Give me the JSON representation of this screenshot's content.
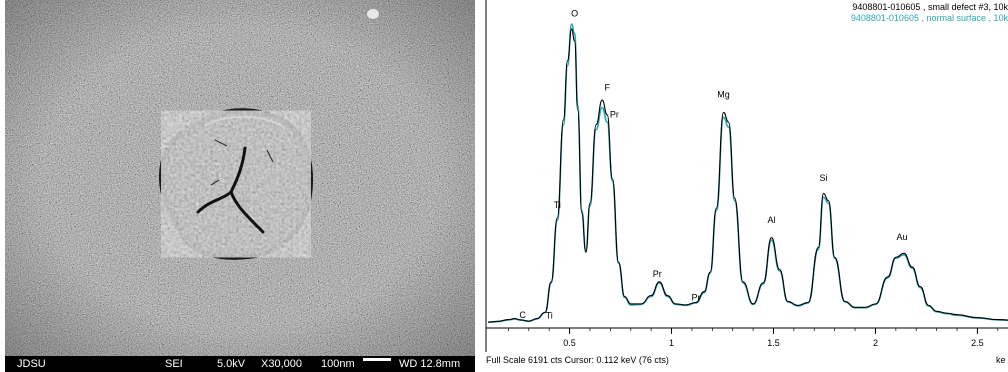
{
  "sem_image": {
    "footer": {
      "left": "JDSU",
      "mode": "SEI",
      "voltage": "5.0kV",
      "magnification": "X30,000",
      "scale": "100nm",
      "working_distance": "WD 12.8mm"
    },
    "colors": {
      "background": "#7a7a7a",
      "footer_bg": "#000000",
      "footer_text": "#ffffff"
    }
  },
  "chart_data": {
    "type": "line",
    "series": [
      {
        "name": "9408801-010605 , small defect #3, 10k",
        "color": "#000000",
        "x": [
          0.1,
          0.15,
          0.2,
          0.23,
          0.26,
          0.3,
          0.34,
          0.38,
          0.41,
          0.44,
          0.47,
          0.49,
          0.51,
          0.525,
          0.54,
          0.56,
          0.58,
          0.6,
          0.63,
          0.66,
          0.685,
          0.71,
          0.74,
          0.77,
          0.8,
          0.85,
          0.9,
          0.94,
          0.98,
          1.02,
          1.07,
          1.12,
          1.16,
          1.19,
          1.22,
          1.255,
          1.28,
          1.31,
          1.35,
          1.4,
          1.45,
          1.49,
          1.53,
          1.57,
          1.62,
          1.67,
          1.72,
          1.745,
          1.77,
          1.8,
          1.85,
          1.9,
          1.95,
          2.0,
          2.06,
          2.1,
          2.14,
          2.18,
          2.22,
          2.26,
          2.3,
          2.35,
          2.4,
          2.5,
          2.6,
          2.7
        ],
        "y": [
          80,
          95,
          130,
          150,
          125,
          100,
          150,
          280,
          900,
          2200,
          4200,
          5400,
          6050,
          5800,
          4400,
          2300,
          1500,
          2500,
          4100,
          4600,
          4300,
          3000,
          1300,
          600,
          450,
          450,
          620,
          900,
          620,
          450,
          430,
          480,
          700,
          1100,
          2400,
          4350,
          4150,
          2600,
          900,
          450,
          880,
          1800,
          1150,
          500,
          420,
          480,
          1600,
          2700,
          2550,
          1400,
          500,
          380,
          380,
          450,
          1000,
          1400,
          1480,
          1200,
          800,
          420,
          300,
          260,
          230,
          170,
          130,
          110
        ]
      },
      {
        "name": "9408801-010605 , normal surface , 10k",
        "color": "#2aa7b0",
        "x": [
          0.1,
          0.15,
          0.2,
          0.23,
          0.26,
          0.3,
          0.34,
          0.38,
          0.41,
          0.44,
          0.47,
          0.49,
          0.51,
          0.525,
          0.54,
          0.56,
          0.58,
          0.6,
          0.63,
          0.66,
          0.685,
          0.71,
          0.74,
          0.77,
          0.8,
          0.85,
          0.9,
          0.94,
          0.98,
          1.02,
          1.07,
          1.12,
          1.16,
          1.19,
          1.22,
          1.255,
          1.28,
          1.31,
          1.35,
          1.4,
          1.45,
          1.49,
          1.53,
          1.57,
          1.62,
          1.67,
          1.72,
          1.745,
          1.77,
          1.8,
          1.85,
          1.9,
          1.95,
          2.0,
          2.06,
          2.1,
          2.14,
          2.18,
          2.22,
          2.26,
          2.3,
          2.35,
          2.4,
          2.5,
          2.6,
          2.7
        ],
        "y": [
          75,
          90,
          125,
          140,
          120,
          95,
          145,
          270,
          880,
          2150,
          4100,
          5300,
          6150,
          5950,
          4500,
          2350,
          1520,
          2450,
          4000,
          4450,
          4150,
          2950,
          1280,
          580,
          430,
          440,
          600,
          880,
          600,
          440,
          420,
          470,
          680,
          1080,
          2350,
          4250,
          4050,
          2550,
          880,
          440,
          860,
          1750,
          1120,
          490,
          410,
          470,
          1560,
          2620,
          2500,
          1380,
          490,
          370,
          370,
          440,
          980,
          1380,
          1450,
          1180,
          780,
          410,
          290,
          250,
          220,
          165,
          125,
          105
        ]
      }
    ],
    "peak_labels": [
      {
        "text": "C",
        "x": 0.27,
        "y": 160
      },
      {
        "text": "Ti",
        "x": 0.4,
        "y": 150
      },
      {
        "text": "Ti",
        "x": 0.44,
        "y": 2400
      },
      {
        "text": "O",
        "x": 0.525,
        "y": 6300
      },
      {
        "text": "F",
        "x": 0.685,
        "y": 4800
      },
      {
        "text": "Pr",
        "x": 0.72,
        "y": 4250
      },
      {
        "text": "Pr",
        "x": 0.93,
        "y": 1000
      },
      {
        "text": "Pr",
        "x": 1.12,
        "y": 520
      },
      {
        "text": "Mg",
        "x": 1.255,
        "y": 4650
      },
      {
        "text": "Al",
        "x": 1.49,
        "y": 2100
      },
      {
        "text": "Si",
        "x": 1.745,
        "y": 2950
      },
      {
        "text": "Au",
        "x": 2.13,
        "y": 1750
      }
    ],
    "x_ticks": [
      "0.5",
      "1",
      "1.5",
      "2",
      "2.5"
    ],
    "x_tick_values": [
      0.5,
      1,
      1.5,
      2,
      2.5
    ],
    "xlim": [
      0.1,
      2.65
    ],
    "ylim": [
      0,
      6191
    ],
    "xlabel": "ke",
    "status_text": "Full Scale 6191 cts  Cursor: 0.112 keV (76 cts)"
  }
}
